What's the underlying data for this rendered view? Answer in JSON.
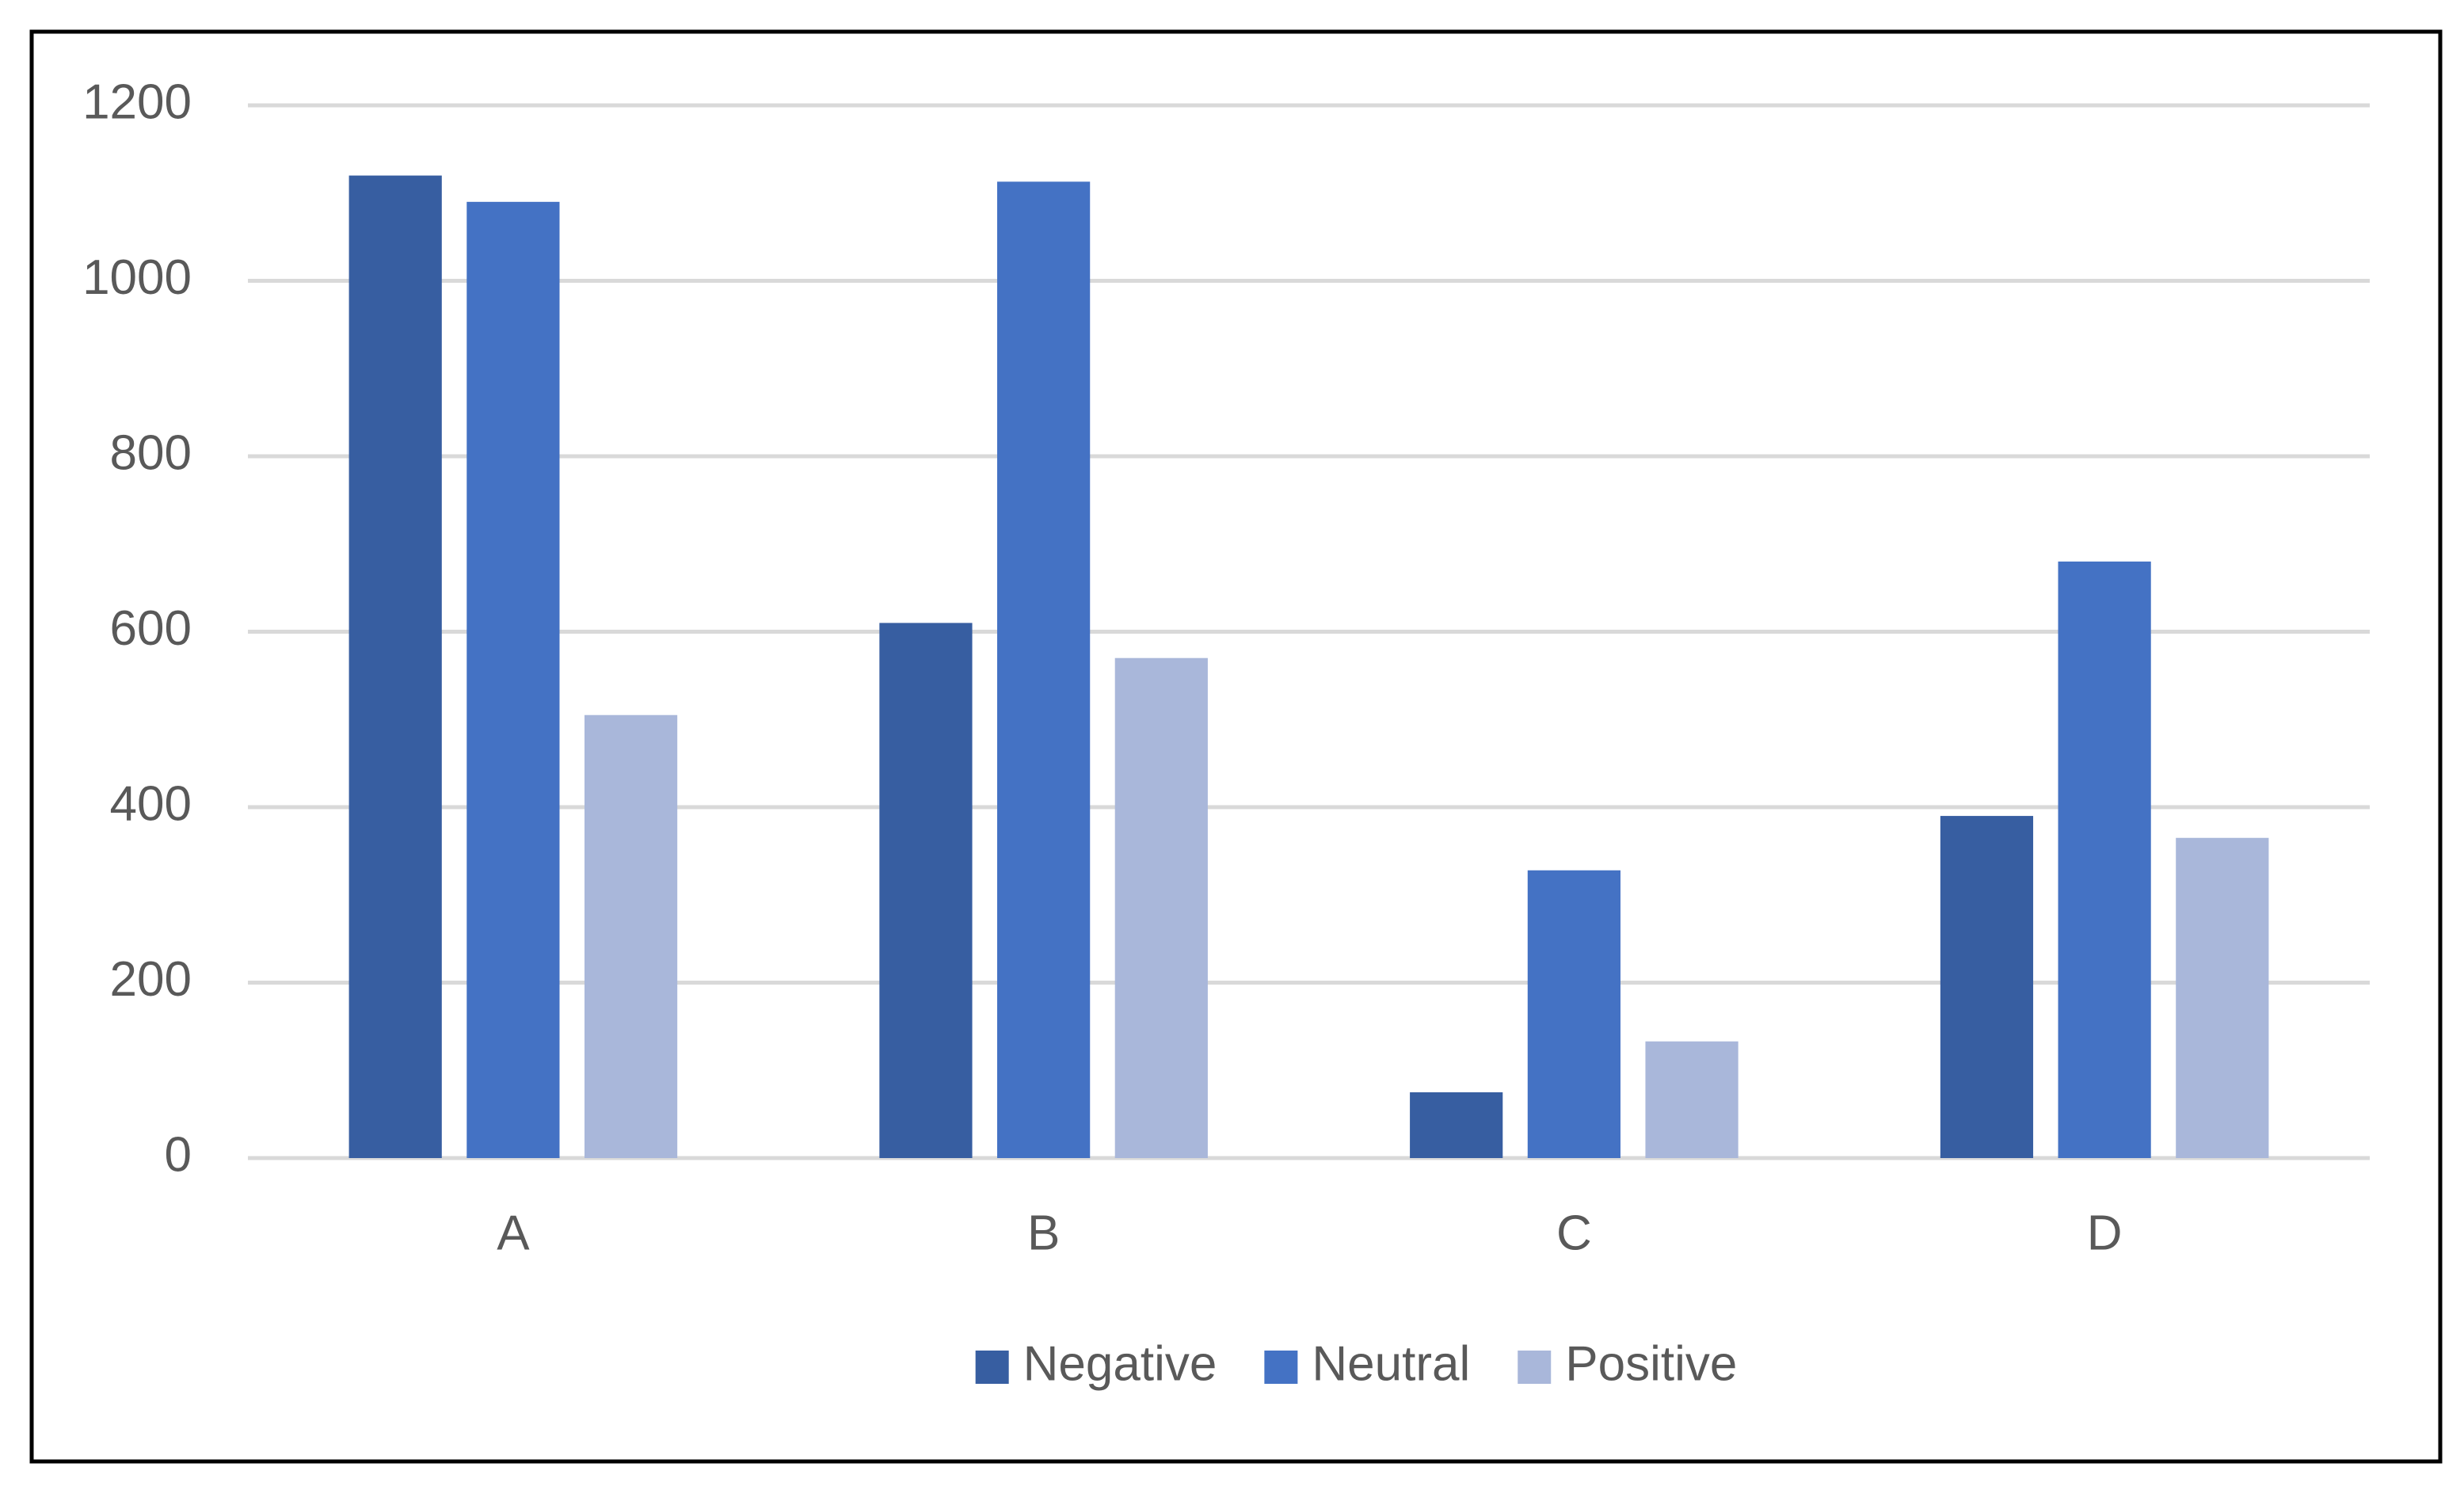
{
  "chart_data": {
    "type": "bar",
    "categories": [
      "A",
      "B",
      "C",
      "D"
    ],
    "series": [
      {
        "name": "Negative",
        "color": "#375ea1",
        "values": [
          1120,
          610,
          75,
          390
        ]
      },
      {
        "name": "Neutral",
        "color": "#4472c4",
        "values": [
          1090,
          1113,
          328,
          680
        ]
      },
      {
        "name": "Positive",
        "color": "#a9b7da",
        "values": [
          505,
          570,
          133,
          365
        ]
      }
    ],
    "ylim": [
      0,
      1200
    ],
    "yticks": [
      0,
      200,
      400,
      600,
      800,
      1000,
      1200
    ],
    "grid": true,
    "legend": "bottom"
  }
}
